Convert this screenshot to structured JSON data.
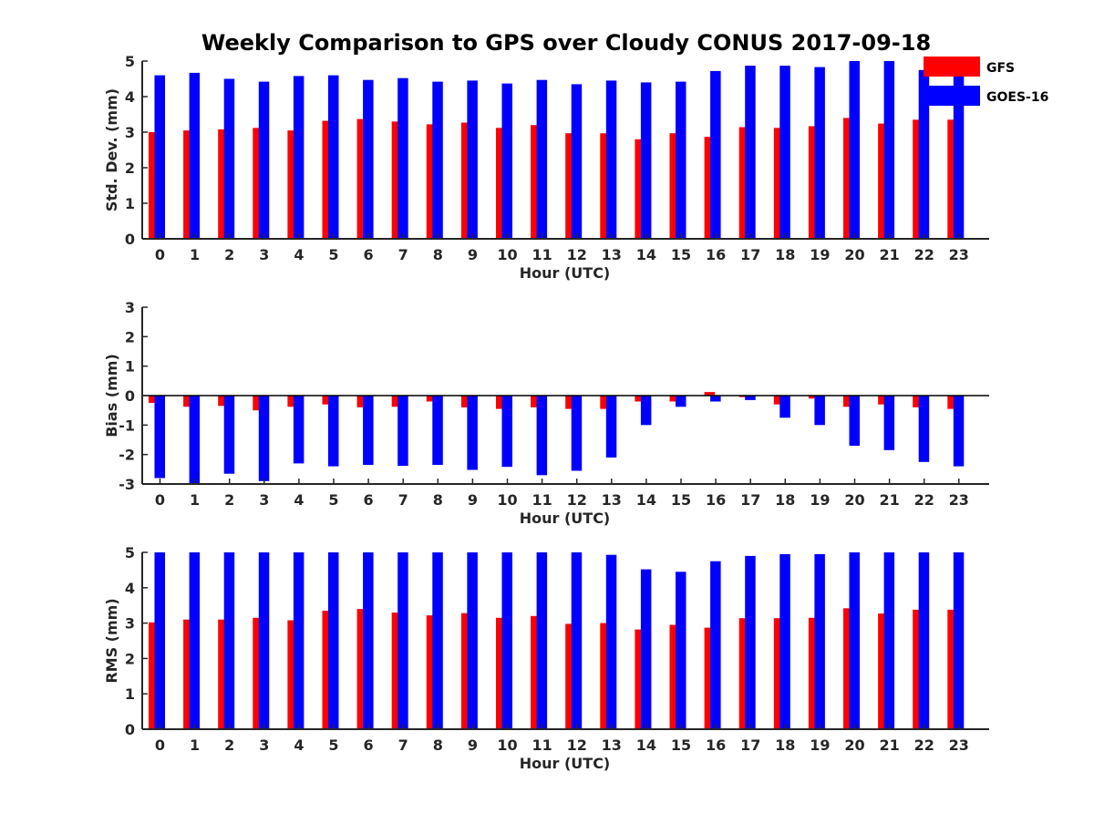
{
  "figure_title": "Weekly Comparison to GPS over Cloudy CONUS 2017-09-18",
  "colors": {
    "GFS": "#ff0000",
    "GOES-16": "#0000ff",
    "axis": "#262626",
    "zero_line": "#000000"
  },
  "chart_data": [
    {
      "type": "bar",
      "title": "Weekly Comparison to GPS over Cloudy CONUS 2017-09-18",
      "xlabel": "Hour (UTC)",
      "ylabel": "Std. Dev. (mm)",
      "ylim": [
        0,
        5
      ],
      "yticks": [
        0,
        1,
        2,
        3,
        4,
        5
      ],
      "categories": [
        "0",
        "1",
        "2",
        "3",
        "4",
        "5",
        "6",
        "7",
        "8",
        "9",
        "10",
        "11",
        "12",
        "13",
        "14",
        "15",
        "16",
        "17",
        "18",
        "19",
        "20",
        "21",
        "22",
        "23"
      ],
      "legend": {
        "position": "top-right",
        "entries": [
          "GFS",
          "GOES-16"
        ]
      },
      "series": [
        {
          "name": "GFS",
          "values": [
            3.0,
            3.05,
            3.08,
            3.12,
            3.05,
            3.32,
            3.37,
            3.3,
            3.22,
            3.27,
            3.12,
            3.2,
            2.97,
            2.97,
            2.8,
            2.97,
            2.87,
            3.14,
            3.12,
            3.17,
            3.4,
            3.24,
            3.35,
            3.35
          ]
        },
        {
          "name": "GOES-16",
          "values": [
            4.6,
            4.67,
            4.5,
            4.42,
            4.58,
            4.6,
            4.47,
            4.52,
            4.42,
            4.45,
            4.37,
            4.47,
            4.35,
            4.45,
            4.4,
            4.42,
            4.72,
            4.87,
            4.87,
            4.83,
            5.0,
            5.0,
            4.75,
            4.6
          ]
        }
      ]
    },
    {
      "type": "bar",
      "xlabel": "Hour (UTC)",
      "ylabel": "Bias (mm)",
      "ylim": [
        -3,
        3
      ],
      "yticks": [
        -3,
        -2,
        -1,
        0,
        1,
        2,
        3
      ],
      "categories": [
        "0",
        "1",
        "2",
        "3",
        "4",
        "5",
        "6",
        "7",
        "8",
        "9",
        "10",
        "11",
        "12",
        "13",
        "14",
        "15",
        "16",
        "17",
        "18",
        "19",
        "20",
        "21",
        "22",
        "23"
      ],
      "series": [
        {
          "name": "GFS",
          "values": [
            -0.25,
            -0.38,
            -0.35,
            -0.5,
            -0.38,
            -0.3,
            -0.4,
            -0.38,
            -0.2,
            -0.4,
            -0.45,
            -0.4,
            -0.45,
            -0.45,
            -0.2,
            -0.2,
            0.12,
            -0.05,
            -0.3,
            -0.1,
            -0.38,
            -0.3,
            -0.4,
            -0.45
          ]
        },
        {
          "name": "GOES-16",
          "values": [
            -2.8,
            -3.0,
            -2.65,
            -2.9,
            -2.3,
            -2.4,
            -2.35,
            -2.38,
            -2.35,
            -2.52,
            -2.42,
            -2.7,
            -2.55,
            -2.1,
            -1.0,
            -0.38,
            -0.2,
            -0.15,
            -0.75,
            -1.0,
            -1.7,
            -1.85,
            -2.25,
            -2.4
          ]
        }
      ]
    },
    {
      "type": "bar",
      "xlabel": "Hour (UTC)",
      "ylabel": "RMS (mm)",
      "ylim": [
        0,
        5
      ],
      "yticks": [
        0,
        1,
        2,
        3,
        4,
        5
      ],
      "categories": [
        "0",
        "1",
        "2",
        "3",
        "4",
        "5",
        "6",
        "7",
        "8",
        "9",
        "10",
        "11",
        "12",
        "13",
        "14",
        "15",
        "16",
        "17",
        "18",
        "19",
        "20",
        "21",
        "22",
        "23"
      ],
      "series": [
        {
          "name": "GFS",
          "values": [
            3.02,
            3.1,
            3.1,
            3.15,
            3.08,
            3.35,
            3.4,
            3.3,
            3.22,
            3.28,
            3.15,
            3.2,
            2.98,
            3.0,
            2.82,
            2.95,
            2.87,
            3.14,
            3.14,
            3.15,
            3.42,
            3.27,
            3.38,
            3.38
          ]
        },
        {
          "name": "GOES-16",
          "values": [
            5.0,
            5.0,
            5.0,
            5.0,
            5.0,
            5.0,
            5.0,
            5.0,
            5.0,
            5.0,
            5.0,
            5.0,
            5.0,
            4.93,
            4.52,
            4.45,
            4.75,
            4.9,
            4.95,
            4.95,
            5.0,
            5.0,
            5.0,
            5.0
          ]
        }
      ]
    }
  ]
}
